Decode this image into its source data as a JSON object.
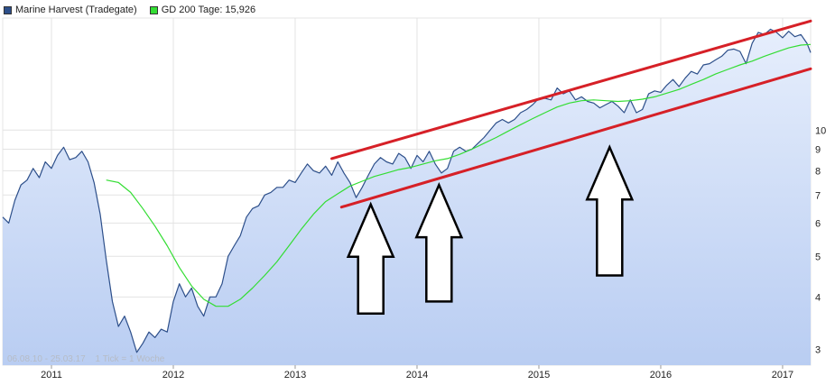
{
  "legend": [
    {
      "label": "Marine Harvest (Tradegate)",
      "color": "#2d4f8a"
    },
    {
      "label": "GD 200 Tage: 15,926",
      "color": "#33dd33"
    }
  ],
  "footer": {
    "range": "06.08.10 - 25.03.17",
    "tick": "1 Tick = 1 Woche"
  },
  "chart_data": {
    "type": "line",
    "y_scale": "log",
    "ylim": [
      2.75,
      18.5
    ],
    "xlim": [
      2010.6,
      2017.23
    ],
    "x_ticks": [
      {
        "label": "2011",
        "x": 2011.0
      },
      {
        "label": "2012",
        "x": 2012.0
      },
      {
        "label": "2013",
        "x": 2013.0
      },
      {
        "label": "2014",
        "x": 2014.0
      },
      {
        "label": "2015",
        "x": 2015.0
      },
      {
        "label": "2016",
        "x": 2016.0
      },
      {
        "label": "2017",
        "x": 2017.0
      }
    ],
    "y_ticks": [
      {
        "label": "3",
        "y": 3
      },
      {
        "label": "4",
        "y": 4
      },
      {
        "label": "5",
        "y": 5
      },
      {
        "label": "6",
        "y": 6
      },
      {
        "label": "7",
        "y": 7
      },
      {
        "label": "8",
        "y": 8
      },
      {
        "label": "9",
        "y": 9
      },
      {
        "label": "10",
        "y": 10
      }
    ],
    "series": [
      {
        "color": "#2d4f8a",
        "x": [
          2010.6,
          2010.65,
          2010.7,
          2010.75,
          2010.8,
          2010.85,
          2010.9,
          2010.95,
          2011.0,
          2011.05,
          2011.1,
          2011.15,
          2011.2,
          2011.25,
          2011.3,
          2011.35,
          2011.4,
          2011.45,
          2011.5,
          2011.55,
          2011.6,
          2011.65,
          2011.7,
          2011.75,
          2011.8,
          2011.85,
          2011.9,
          2011.95,
          2012.0,
          2012.05,
          2012.1,
          2012.15,
          2012.2,
          2012.25,
          2012.3,
          2012.35,
          2012.4,
          2012.45,
          2012.5,
          2012.55,
          2012.6,
          2012.65,
          2012.7,
          2012.75,
          2012.8,
          2012.85,
          2012.9,
          2012.95,
          2013.0,
          2013.05,
          2013.1,
          2013.15,
          2013.2,
          2013.25,
          2013.3,
          2013.35,
          2013.4,
          2013.45,
          2013.5,
          2013.55,
          2013.6,
          2013.65,
          2013.7,
          2013.75,
          2013.8,
          2013.85,
          2013.9,
          2013.95,
          2014.0,
          2014.05,
          2014.1,
          2014.15,
          2014.2,
          2014.25,
          2014.3,
          2014.35,
          2014.4,
          2014.45,
          2014.5,
          2014.55,
          2014.6,
          2014.65,
          2014.7,
          2014.75,
          2014.8,
          2014.85,
          2014.9,
          2014.95,
          2015.0,
          2015.05,
          2015.1,
          2015.15,
          2015.2,
          2015.25,
          2015.3,
          2015.35,
          2015.4,
          2015.45,
          2015.5,
          2015.55,
          2015.6,
          2015.65,
          2015.7,
          2015.75,
          2015.8,
          2015.85,
          2015.9,
          2015.95,
          2016.0,
          2016.05,
          2016.1,
          2016.15,
          2016.2,
          2016.25,
          2016.3,
          2016.35,
          2016.4,
          2016.45,
          2016.5,
          2016.55,
          2016.6,
          2016.65,
          2016.7,
          2016.75,
          2016.8,
          2016.85,
          2016.9,
          2016.95,
          2017.0,
          2017.05,
          2017.1,
          2017.15,
          2017.2,
          2017.23
        ],
        "y": [
          6.2,
          6.0,
          6.8,
          7.4,
          7.6,
          8.1,
          7.7,
          8.4,
          8.1,
          8.7,
          9.1,
          8.5,
          8.6,
          8.9,
          8.4,
          7.5,
          6.3,
          4.9,
          3.9,
          3.4,
          3.6,
          3.3,
          2.95,
          3.1,
          3.3,
          3.2,
          3.35,
          3.3,
          3.9,
          4.3,
          4.0,
          4.2,
          3.8,
          3.6,
          4.0,
          4.0,
          4.3,
          5.0,
          5.3,
          5.6,
          6.2,
          6.5,
          6.6,
          7.0,
          7.1,
          7.3,
          7.3,
          7.6,
          7.5,
          7.9,
          8.3,
          8.0,
          7.9,
          8.2,
          7.8,
          8.4,
          7.9,
          7.5,
          6.9,
          7.3,
          7.8,
          8.3,
          8.6,
          8.4,
          8.3,
          8.8,
          8.6,
          8.1,
          8.7,
          8.4,
          8.9,
          8.3,
          7.9,
          8.1,
          8.9,
          9.1,
          8.9,
          9.0,
          9.3,
          9.6,
          10.0,
          10.4,
          10.6,
          10.4,
          10.6,
          11.0,
          11.2,
          11.5,
          11.9,
          11.9,
          11.8,
          12.6,
          12.2,
          12.4,
          11.8,
          12.0,
          11.7,
          11.6,
          11.3,
          11.5,
          11.7,
          11.4,
          11.0,
          11.8,
          11.0,
          11.2,
          12.2,
          12.4,
          12.3,
          12.8,
          13.2,
          12.7,
          13.3,
          13.8,
          13.6,
          14.3,
          14.4,
          14.7,
          15.0,
          15.5,
          15.6,
          15.4,
          14.4,
          16.1,
          17.1,
          16.9,
          17.4,
          17.1,
          16.6,
          17.2,
          16.7,
          16.9,
          16.1,
          15.3
        ]
      },
      {
        "color": "#33dd33",
        "x": [
          2011.45,
          2011.55,
          2011.65,
          2011.75,
          2011.85,
          2011.95,
          2012.05,
          2012.15,
          2012.25,
          2012.35,
          2012.45,
          2012.55,
          2012.65,
          2012.75,
          2012.85,
          2012.95,
          2013.05,
          2013.15,
          2013.25,
          2013.35,
          2013.45,
          2013.55,
          2013.65,
          2013.75,
          2013.85,
          2013.95,
          2014.05,
          2014.15,
          2014.25,
          2014.35,
          2014.45,
          2014.55,
          2014.65,
          2014.75,
          2014.85,
          2014.95,
          2015.05,
          2015.15,
          2015.25,
          2015.35,
          2015.45,
          2015.55,
          2015.65,
          2015.75,
          2015.85,
          2015.95,
          2016.05,
          2016.15,
          2016.25,
          2016.35,
          2016.45,
          2016.55,
          2016.65,
          2016.75,
          2016.85,
          2016.95,
          2017.05,
          2017.15,
          2017.23
        ],
        "y": [
          7.6,
          7.5,
          7.1,
          6.5,
          5.9,
          5.3,
          4.7,
          4.25,
          3.95,
          3.8,
          3.8,
          3.95,
          4.2,
          4.5,
          4.85,
          5.3,
          5.8,
          6.3,
          6.75,
          7.05,
          7.35,
          7.55,
          7.75,
          7.9,
          8.05,
          8.15,
          8.3,
          8.45,
          8.55,
          8.75,
          9.0,
          9.3,
          9.6,
          9.95,
          10.3,
          10.65,
          11.0,
          11.35,
          11.6,
          11.75,
          11.8,
          11.75,
          11.7,
          11.75,
          11.85,
          12.0,
          12.25,
          12.5,
          12.85,
          13.2,
          13.6,
          13.95,
          14.3,
          14.6,
          15.0,
          15.35,
          15.7,
          15.95,
          16.0
        ]
      }
    ],
    "trend_lines": [
      {
        "color": "#d62027",
        "x": [
          2013.3,
          2017.23
        ],
        "y": [
          8.55,
          18.2
        ]
      },
      {
        "color": "#d62027",
        "x": [
          2013.38,
          2017.23
        ],
        "y": [
          6.55,
          14.0
        ]
      }
    ],
    "arrows": [
      {
        "x": 2013.62,
        "tip_y": 6.65,
        "base_y": 3.65
      },
      {
        "x": 2014.18,
        "tip_y": 7.4,
        "base_y": 3.9
      },
      {
        "x": 2015.58,
        "tip_y": 9.1,
        "base_y": 4.5
      }
    ]
  }
}
